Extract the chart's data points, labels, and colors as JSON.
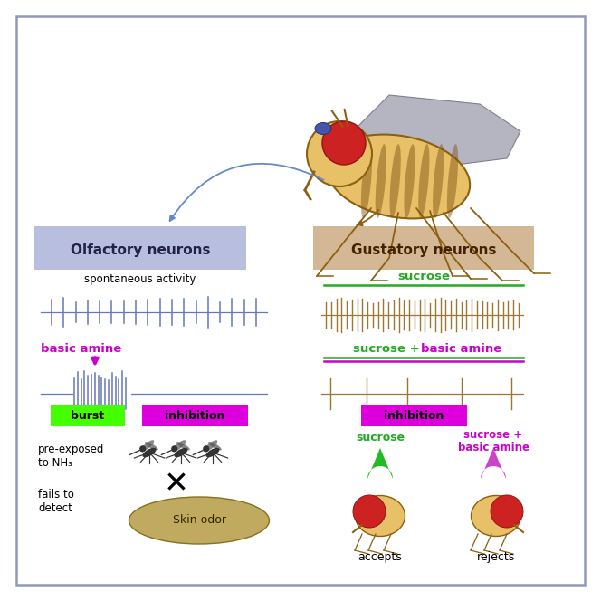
{
  "fig_size": [
    6.64,
    6.64
  ],
  "dpi": 100,
  "bg_color": "#ffffff",
  "border_color": "#9099bb",
  "border_lw": 1.5,
  "olf_label": "Olfactory neurons",
  "olf_label_bg": "#b8bedd",
  "gust_label": "Gustatory neurons",
  "gust_label_bg": "#d4b896",
  "spont_label": "spontaneous activity",
  "sucrose_label": "sucrose",
  "sucrose_color": "#22aa22",
  "basic_amine_label": "basic amine",
  "basic_amine_color": "#cc00cc",
  "burst_label": "burst",
  "burst_bg": "#44ff00",
  "inhibition_label": "inhibition",
  "inhibition_bg": "#dd00dd",
  "spike_color_olf": "#6677bb",
  "spike_color_gust": "#9a7830",
  "skin_odor_label": "Skin odor",
  "skin_odor_color": "#c0aa60",
  "accepts_label": "accepts",
  "rejects_label": "rejects",
  "pre_exposed_line1": "pre-exposed",
  "pre_exposed_line2": "to NH₃",
  "fails_detect_line1": "fails to",
  "fails_detect_line2": "detect"
}
